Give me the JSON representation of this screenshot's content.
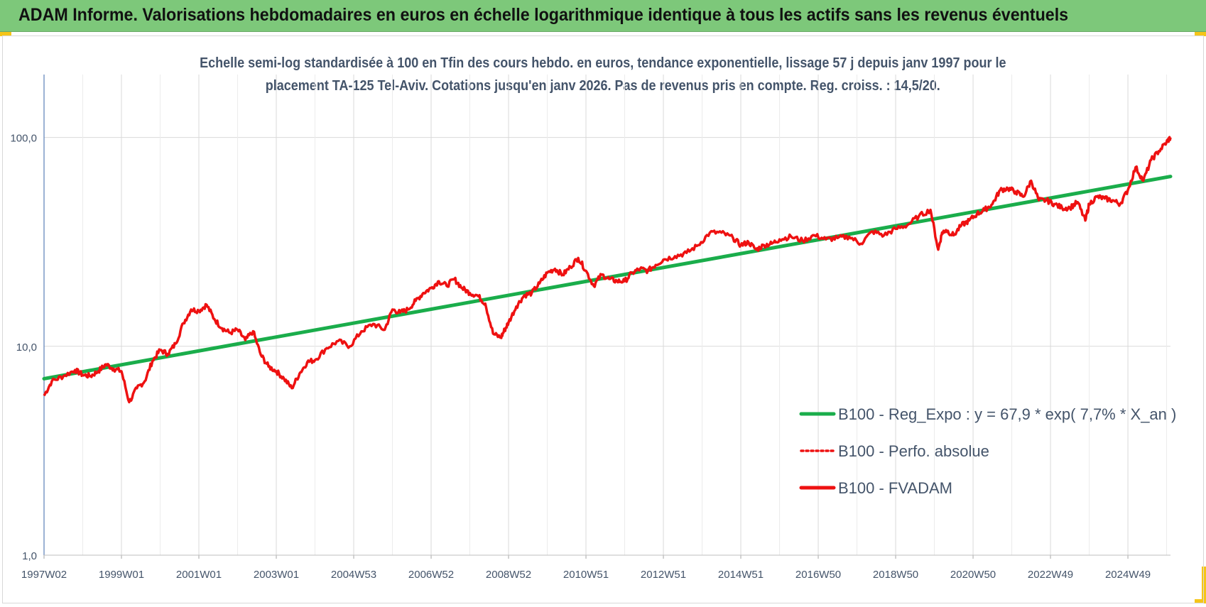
{
  "header": {
    "title": "ADAM Informe. Valorisations hebdomadaires en euros en échelle logarithmique identique à tous les actifs sans les revenus éventuels"
  },
  "colors": {
    "banner": "#7dc87a",
    "corner_accent": "#f5c518",
    "trend": "#1aad4b",
    "price": "#ee1111",
    "grid": "#d9d9d9",
    "text": "#44546a"
  },
  "chart_data": {
    "type": "line",
    "subtitle_line1": "Echelle semi-log standardisée à 100 en Tfin des cours hebdo. en euros, tendance exponentielle, lissage 57 j depuis janv 1997 pour le",
    "subtitle_line2": "placement TA-125 Tel-Aviv. Cotations jusqu'en janv 2026. Pas de revenus pris en compte. Reg. croiss. : 14,5/20.",
    "y_scale": "log",
    "ylim": [
      1,
      200
    ],
    "xlim": [
      1997.0,
      2026.1
    ],
    "y_ticks": [
      {
        "value": 1,
        "label": "1,0"
      },
      {
        "value": 10,
        "label": "10,0"
      },
      {
        "value": 100,
        "label": "100,0"
      }
    ],
    "x_ticks": [
      {
        "value": 1997.0,
        "label": "1997W02"
      },
      {
        "value": 1999.0,
        "label": "1999W01"
      },
      {
        "value": 2001.0,
        "label": "2001W01"
      },
      {
        "value": 2003.0,
        "label": "2003W01"
      },
      {
        "value": 2005.0,
        "label": "2004W53"
      },
      {
        "value": 2007.0,
        "label": "2006W52"
      },
      {
        "value": 2009.0,
        "label": "2008W52"
      },
      {
        "value": 2011.0,
        "label": "2010W51"
      },
      {
        "value": 2013.0,
        "label": "2012W51"
      },
      {
        "value": 2015.0,
        "label": "2014W51"
      },
      {
        "value": 2017.0,
        "label": "2016W50"
      },
      {
        "value": 2019.0,
        "label": "2018W50"
      },
      {
        "value": 2021.0,
        "label": "2020W50"
      },
      {
        "value": 2023.0,
        "label": "2022W49"
      },
      {
        "value": 2025.0,
        "label": "2024W49"
      }
    ],
    "grid": true,
    "legend_position": "bottom-right",
    "series": [
      {
        "name": "B100 - Reg_Expo : y = 67,9 * exp( 7,7% *  X_an )",
        "style": "solid",
        "x": [
          1997.0,
          2026.1
        ],
        "y": [
          7.0,
          65.0
        ]
      },
      {
        "name": "B100 - Perfo. absolue",
        "style": "dotted",
        "x": [],
        "y": []
      },
      {
        "name": "B100 - FVADAM",
        "style": "solid",
        "x": [
          1997.0,
          1997.2,
          1997.5,
          1997.8,
          1998.0,
          1998.2,
          1998.4,
          1998.6,
          1998.8,
          1999.0,
          1999.2,
          1999.4,
          1999.6,
          1999.8,
          2000.0,
          2000.2,
          2000.4,
          2000.6,
          2000.8,
          2001.0,
          2001.2,
          2001.4,
          2001.6,
          2001.8,
          2002.0,
          2002.2,
          2002.4,
          2002.6,
          2002.8,
          2003.0,
          2003.2,
          2003.4,
          2003.6,
          2003.8,
          2004.0,
          2004.3,
          2004.6,
          2004.9,
          2005.2,
          2005.5,
          2005.8,
          2006.0,
          2006.2,
          2006.4,
          2006.6,
          2006.8,
          2007.0,
          2007.2,
          2007.4,
          2007.6,
          2007.8,
          2008.0,
          2008.2,
          2008.4,
          2008.6,
          2008.8,
          2008.9,
          2009.0,
          2009.2,
          2009.4,
          2009.6,
          2009.8,
          2010.0,
          2010.2,
          2010.4,
          2010.6,
          2010.8,
          2011.0,
          2011.2,
          2011.4,
          2011.6,
          2011.8,
          2012.0,
          2012.2,
          2012.4,
          2012.6,
          2012.8,
          2013.0,
          2013.3,
          2013.6,
          2013.9,
          2014.2,
          2014.5,
          2014.8,
          2015.0,
          2015.2,
          2015.4,
          2015.6,
          2015.8,
          2016.0,
          2016.3,
          2016.6,
          2016.9,
          2017.2,
          2017.5,
          2017.8,
          2018.1,
          2018.4,
          2018.7,
          2019.0,
          2019.3,
          2019.6,
          2019.9,
          2020.1,
          2020.2,
          2020.3,
          2020.5,
          2020.7,
          2020.9,
          2021.1,
          2021.3,
          2021.5,
          2021.7,
          2021.9,
          2022.1,
          2022.3,
          2022.5,
          2022.7,
          2022.9,
          2023.1,
          2023.3,
          2023.5,
          2023.7,
          2023.9,
          2024.0,
          2024.2,
          2024.4,
          2024.6,
          2024.8,
          2025.0,
          2025.2,
          2025.4,
          2025.6,
          2025.8,
          2026.0,
          2026.1
        ],
        "y": [
          5.8,
          6.8,
          7.2,
          7.7,
          7.3,
          7.2,
          7.6,
          8.2,
          7.8,
          7.6,
          5.4,
          6.3,
          6.8,
          8.5,
          9.6,
          9.2,
          10.3,
          12.9,
          15.0,
          14.8,
          15.8,
          13.5,
          12.2,
          11.6,
          12.0,
          10.7,
          11.8,
          9.1,
          8.0,
          7.6,
          7.0,
          6.3,
          7.4,
          8.4,
          8.6,
          9.8,
          10.6,
          10.0,
          11.8,
          12.8,
          12.0,
          15.0,
          14.5,
          15.0,
          16.5,
          18.0,
          19.0,
          20.5,
          19.5,
          21.0,
          19.0,
          18.0,
          17.5,
          16.0,
          11.5,
          11.0,
          12.0,
          13.0,
          15.5,
          17.5,
          18.0,
          20.0,
          22.5,
          23.5,
          22.0,
          24.0,
          26.5,
          23.0,
          19.5,
          22.0,
          21.0,
          20.5,
          20.5,
          22.5,
          23.5,
          23.0,
          24.5,
          26.0,
          27.0,
          28.0,
          30.5,
          35.0,
          35.0,
          33.0,
          30.5,
          31.5,
          29.0,
          30.5,
          31.0,
          32.5,
          33.5,
          32.0,
          34.0,
          32.5,
          33.0,
          33.5,
          31.0,
          35.5,
          34.0,
          36.5,
          38.0,
          42.0,
          45.0,
          29.0,
          35.0,
          36.0,
          34.0,
          38.0,
          40.0,
          43.0,
          45.0,
          48.0,
          56.0,
          57.0,
          55.0,
          52.0,
          62.0,
          50.0,
          50.0,
          48.0,
          46.0,
          46.0,
          49.0,
          40.0,
          48.0,
          52.0,
          51.0,
          50.0,
          48.0,
          56.0,
          72.0,
          62.0,
          78.0,
          86.0,
          95.0,
          100.0
        ]
      }
    ]
  }
}
